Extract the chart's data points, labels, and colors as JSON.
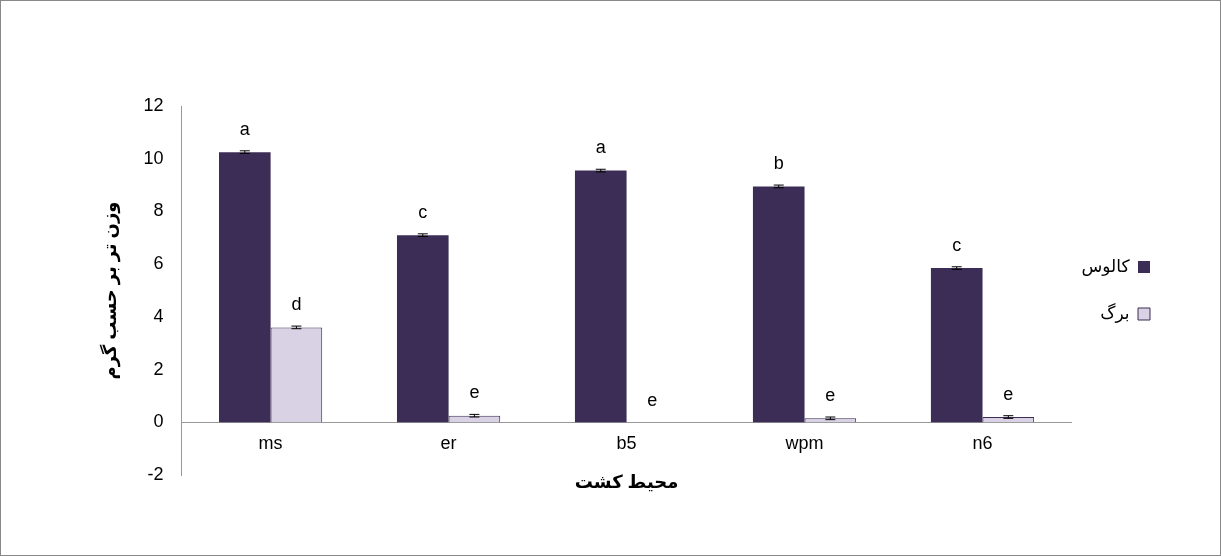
{
  "chart_data": {
    "type": "bar",
    "xlabel": "محیط کشت",
    "ylabel": "وزن تر بر حسب گرم",
    "categories": [
      "ms",
      "er",
      "b5",
      "wpm",
      "n6"
    ],
    "series": [
      {
        "name": "کالوس",
        "color": "#3b2d55",
        "values": [
          10.25,
          7.1,
          9.55,
          8.95,
          5.85
        ],
        "errors": [
          0.05,
          0.05,
          0.05,
          0.05,
          0.05
        ]
      },
      {
        "name": "برگ",
        "color": "#d8d2e4",
        "values": [
          3.6,
          0.25,
          0,
          0.15,
          0.2
        ],
        "errors": [
          0.05,
          0.05,
          null,
          0.05,
          0.05
        ]
      }
    ],
    "ylim": [
      -2,
      12
    ],
    "yticks": [
      -2,
      0,
      2,
      4,
      6,
      8,
      10,
      12
    ],
    "grid": false,
    "legend": "right",
    "annotations": [
      {
        "text": "a",
        "x": "ms",
        "y": 10.3
      },
      {
        "text": "d",
        "x": "ms",
        "y": 3.65
      },
      {
        "text": "c",
        "x": "er",
        "y": 7.15
      },
      {
        "text": "e",
        "x": "er",
        "y": 0.3
      },
      {
        "text": "a",
        "x": "b5",
        "y": 9.6
      },
      {
        "text": "e",
        "x": "b5",
        "y": 0
      },
      {
        "text": "b",
        "x": "wpm",
        "y": 9
      },
      {
        "text": "e",
        "x": "wpm",
        "y": 0.2
      },
      {
        "text": "c",
        "x": "n6",
        "y": 5.9
      },
      {
        "text": "e",
        "x": "n6",
        "y": 0.25
      }
    ]
  }
}
